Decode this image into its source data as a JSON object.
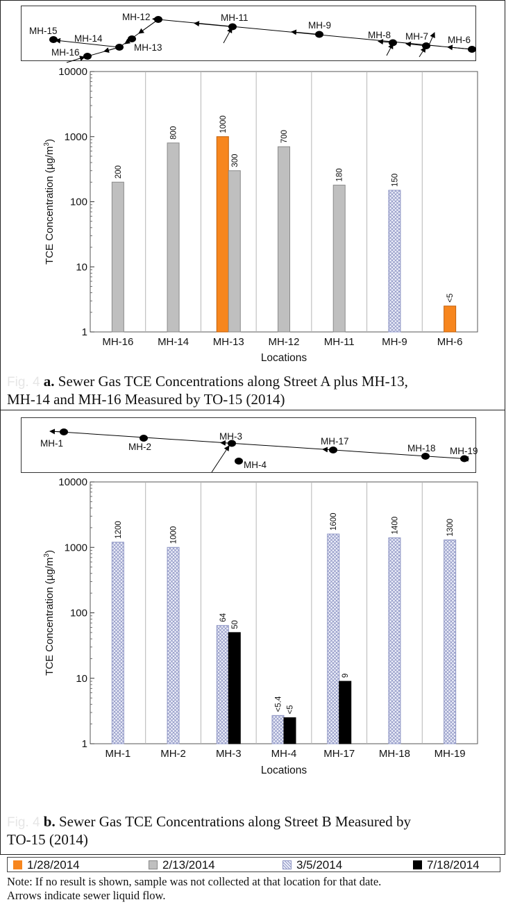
{
  "chart_data": [
    {
      "type": "bar",
      "scale": "log",
      "ylabel": "TCE Concentration (µg/m³)",
      "xlabel": "Locations",
      "ylim": [
        1,
        10000
      ],
      "y_ticks": [
        "1",
        "10",
        "100",
        "1000",
        "10000"
      ],
      "categories": [
        "MH-16",
        "MH-14",
        "MH-13",
        "MH-12",
        "MH-11",
        "MH-9",
        "MH-6"
      ],
      "series": [
        {
          "name": "1/28/2014",
          "color": "#f7861e",
          "pattern": "solid",
          "values": [
            null,
            null,
            1000,
            null,
            null,
            null,
            2.5
          ],
          "labels": [
            null,
            null,
            "1000",
            null,
            null,
            null,
            "<5"
          ]
        },
        {
          "name": "2/13/2014",
          "color": "#bfbfbf",
          "pattern": "solid",
          "values": [
            200,
            800,
            300,
            700,
            180,
            null,
            null
          ],
          "labels": [
            "200",
            "800",
            "300",
            "700",
            "180",
            null,
            null
          ]
        },
        {
          "name": "3/5/2014",
          "color": "#c9cde6",
          "pattern": "crosshatch",
          "values": [
            null,
            null,
            null,
            null,
            null,
            150,
            null
          ],
          "labels": [
            null,
            null,
            null,
            null,
            null,
            "150",
            null
          ]
        }
      ],
      "caption": {
        "fig": "Fig. 4",
        "bold": "a.",
        "text": " Sewer Gas TCE Concentrations along Street A plus MH-13,",
        "line2": "MH-14 and MH-16 Measured by TO-15 (2014)"
      },
      "map": {
        "labels": [
          "MH-15",
          "MH-12",
          "MH-11",
          "MH-9",
          "MH-8",
          "MH-7",
          "MH-6",
          "MH-14",
          "MH-13",
          "MH-16"
        ]
      }
    },
    {
      "type": "bar",
      "scale": "log",
      "ylabel": "TCE Concentration (µg/m³)",
      "xlabel": "Locations",
      "ylim": [
        1,
        10000
      ],
      "y_ticks": [
        "1",
        "10",
        "100",
        "1000",
        "10000"
      ],
      "categories": [
        "MH-1",
        "MH-2",
        "MH-3",
        "MH-4",
        "MH-17",
        "MH-18",
        "MH-19"
      ],
      "series": [
        {
          "name": "3/5/2014",
          "color": "#c9cde6",
          "pattern": "crosshatch",
          "values": [
            1200,
            1000,
            64,
            2.7,
            1600,
            1400,
            1300
          ],
          "labels": [
            "1200",
            "1000",
            "64",
            "<5.4",
            "1600",
            "1400",
            "1300"
          ]
        },
        {
          "name": "7/18/2014",
          "color": "#000000",
          "pattern": "solid",
          "values": [
            null,
            null,
            50,
            2.5,
            9,
            null,
            null
          ],
          "labels": [
            null,
            null,
            "50",
            "<5",
            "9",
            null,
            null
          ]
        }
      ],
      "caption": {
        "fig": "Fig. 4",
        "bold": "b.",
        "text": " Sewer Gas TCE Concentrations along Street B Measured by",
        "line2": "TO-15 (2014)"
      },
      "map": {
        "labels": [
          "MH-1",
          "MH-2",
          "MH-3",
          "MH-4",
          "MH-17",
          "MH-18",
          "MH-19"
        ]
      }
    }
  ],
  "legend": [
    {
      "label": "1/28/2014",
      "color": "#f7861e",
      "pattern": "solid"
    },
    {
      "label": "2/13/2014",
      "color": "#bfbfbf",
      "pattern": "solid"
    },
    {
      "label": "3/5/2014",
      "color": "#c9cde6",
      "pattern": "crosshatch"
    },
    {
      "label": "7/18/2014",
      "color": "#000000",
      "pattern": "solid"
    }
  ],
  "note": {
    "line1": "Note: If no result is shown, sample was not collected at that location for that date.",
    "line2": "Arrows indicate sewer liquid flow."
  }
}
